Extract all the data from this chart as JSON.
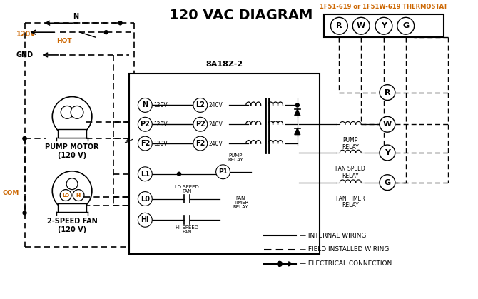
{
  "title": "120 VAC DIAGRAM",
  "title_color": "#000000",
  "title_fontsize": 14,
  "bg_color": "#ffffff",
  "line_color": "#000000",
  "orange_color": "#cc6600",
  "thermostat_label": "1F51-619 or 1F51W-619 THERMOSTAT",
  "control_board_label": "8A18Z-2",
  "pump_motor_label": "PUMP MOTOR\n(120 V)",
  "fan_label": "2-SPEED FAN\n(120 V)",
  "terminals_thermostat": [
    "R",
    "W",
    "Y",
    "G"
  ],
  "terminal_left_labels": [
    "N",
    "P2",
    "F2",
    "L1",
    "L0",
    "HI"
  ],
  "terminal_right_labels": [
    "L2",
    "P2",
    "F2"
  ],
  "voltage_left": [
    "120V",
    "120V",
    "120V"
  ],
  "voltage_right": [
    "240V",
    "240V",
    "240V"
  ]
}
